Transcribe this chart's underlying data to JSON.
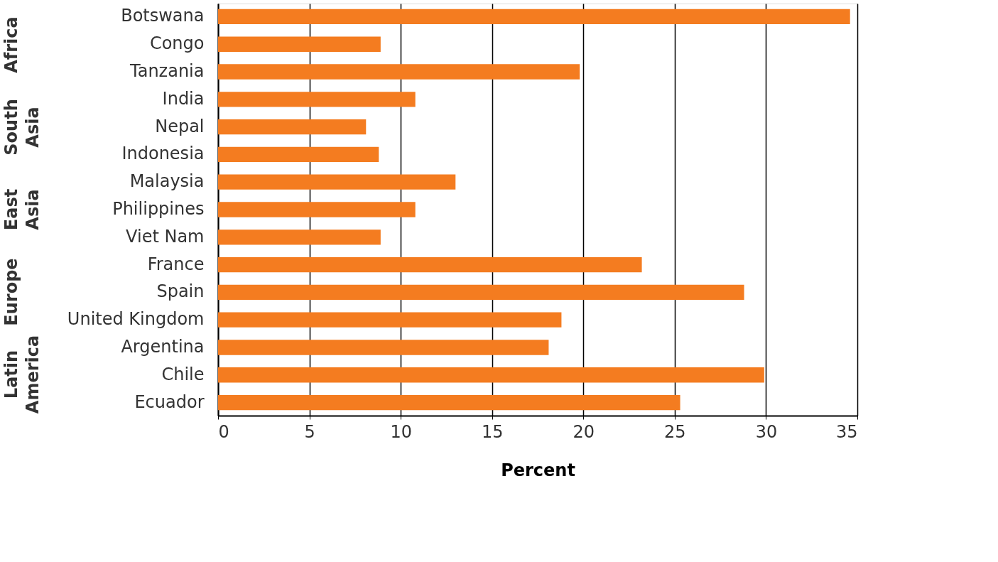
{
  "chart_data": {
    "type": "bar",
    "orientation": "horizontal",
    "xlabel": "Percent",
    "categories": [
      "Botswana",
      "Congo",
      "Tanzania",
      "India",
      "Nepal",
      "Indonesia",
      "Malaysia",
      "Philippines",
      "Viet Nam",
      "France",
      "Spain",
      "United Kingdom",
      "Argentina",
      "Chile",
      "Ecuador"
    ],
    "values": [
      34.6,
      8.9,
      19.8,
      10.8,
      8.1,
      8.8,
      13.0,
      10.8,
      8.9,
      23.2,
      28.8,
      18.8,
      18.1,
      29.9,
      25.3
    ],
    "color": "#f47c20",
    "xlim": [
      0,
      35
    ],
    "xticks": [
      0,
      5,
      10,
      15,
      20,
      25,
      30,
      35
    ],
    "grid": "x",
    "annotations": [
      "Africa",
      "South Asia",
      "East Asia",
      "Europe",
      "Latin America"
    ]
  }
}
